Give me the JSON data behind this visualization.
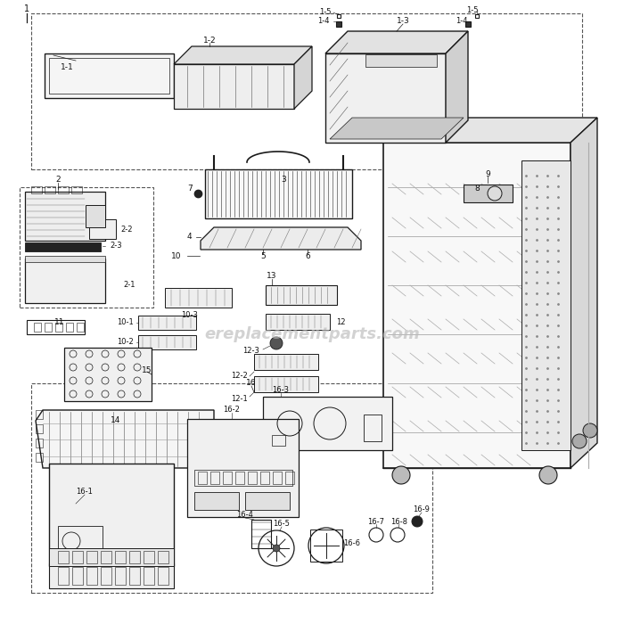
{
  "bg_color": "#ffffff",
  "line_color": "#1a1a1a",
  "dash_color": "#555555",
  "watermark": "ereplacementparts.com",
  "label_fs": 6.5,
  "lw_main": 0.9,
  "lw_thin": 0.5
}
